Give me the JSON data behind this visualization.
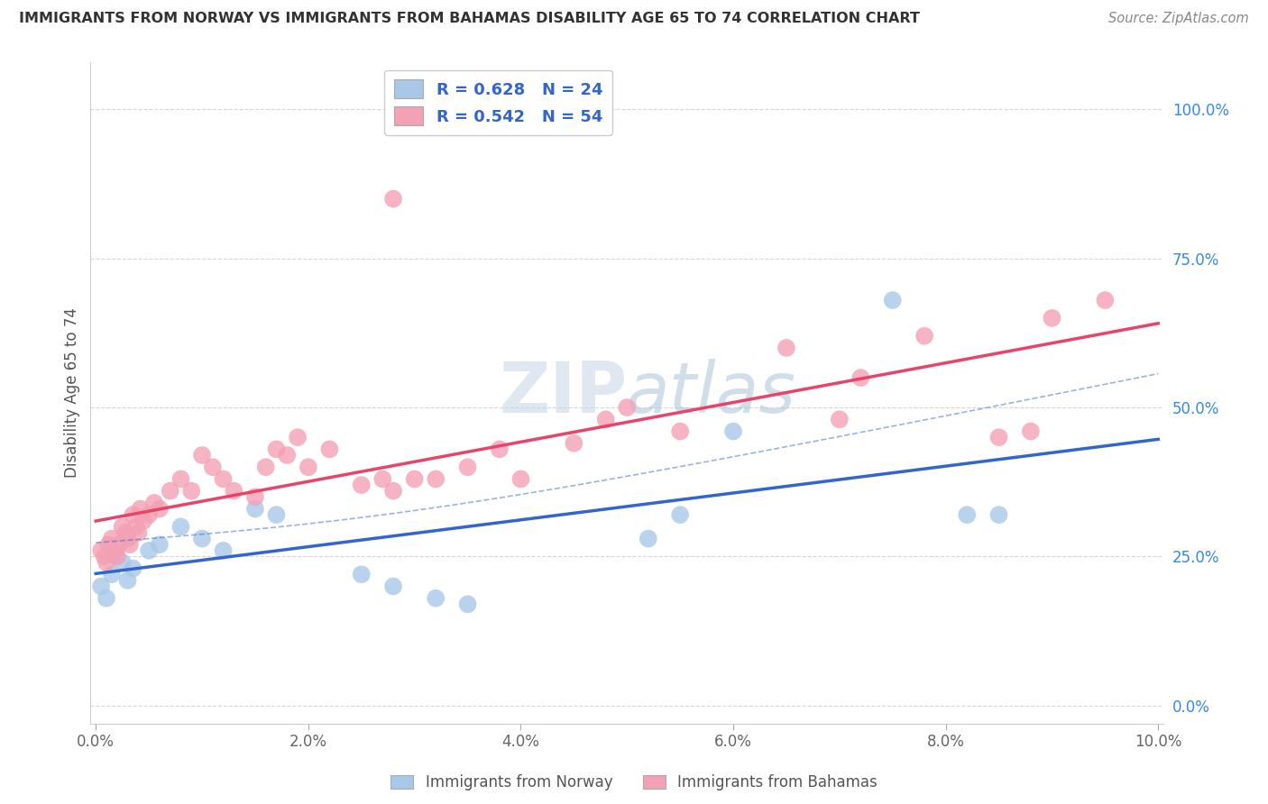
{
  "title": "IMMIGRANTS FROM NORWAY VS IMMIGRANTS FROM BAHAMAS DISABILITY AGE 65 TO 74 CORRELATION CHART",
  "source": "Source: ZipAtlas.com",
  "xlabel": "",
  "ylabel": "Disability Age 65 to 74",
  "legend_label1": "Immigrants from Norway",
  "legend_label2": "Immigrants from Bahamas",
  "R1": 0.628,
  "N1": 24,
  "R2": 0.542,
  "N2": 54,
  "xlim": [
    0.0,
    10.0
  ],
  "ylim": [
    0.0,
    100.0
  ],
  "xtick_vals": [
    0.0,
    2.0,
    4.0,
    6.0,
    8.0,
    10.0
  ],
  "ytick_vals": [
    0.0,
    25.0,
    50.0,
    75.0,
    100.0
  ],
  "color_norway": "#A8C8E8",
  "color_bahamas": "#F4A0B5",
  "trend_color_norway": "#3366CC",
  "trend_color_bahamas": "#E8436A",
  "watermark": "ZIPatlas",
  "norway_x": [
    0.05,
    0.1,
    0.15,
    0.2,
    0.25,
    0.3,
    0.35,
    0.5,
    0.6,
    0.8,
    1.0,
    1.2,
    1.5,
    1.7,
    2.5,
    2.8,
    3.2,
    3.5,
    5.2,
    5.5,
    6.0,
    7.5,
    8.2,
    8.5
  ],
  "norway_y": [
    20,
    18,
    22,
    25,
    24,
    21,
    23,
    26,
    27,
    30,
    28,
    26,
    33,
    32,
    22,
    20,
    18,
    17,
    28,
    32,
    46,
    68,
    32,
    32
  ],
  "bahamas_x": [
    0.05,
    0.08,
    0.1,
    0.12,
    0.15,
    0.18,
    0.2,
    0.22,
    0.25,
    0.28,
    0.3,
    0.32,
    0.35,
    0.38,
    0.4,
    0.42,
    0.45,
    0.5,
    0.55,
    0.6,
    0.7,
    0.8,
    0.9,
    1.0,
    1.1,
    1.2,
    1.3,
    1.5,
    1.6,
    1.7,
    1.8,
    1.9,
    2.0,
    2.2,
    2.5,
    2.7,
    2.8,
    3.0,
    3.2,
    3.5,
    3.8,
    4.0,
    4.5,
    4.8,
    5.0,
    5.5,
    6.5,
    7.0,
    7.2,
    7.8,
    8.5,
    8.8,
    9.0,
    9.5
  ],
  "bahamas_y": [
    26,
    25,
    24,
    27,
    28,
    26,
    25,
    27,
    30,
    29,
    28,
    27,
    32,
    30,
    29,
    33,
    31,
    32,
    34,
    33,
    36,
    38,
    36,
    42,
    40,
    38,
    36,
    35,
    40,
    43,
    42,
    45,
    40,
    43,
    37,
    38,
    36,
    38,
    38,
    40,
    43,
    38,
    44,
    48,
    50,
    46,
    60,
    48,
    55,
    62,
    45,
    46,
    65,
    68
  ],
  "bahamas_outlier_x": [
    2.8
  ],
  "bahamas_outlier_y": [
    85
  ]
}
